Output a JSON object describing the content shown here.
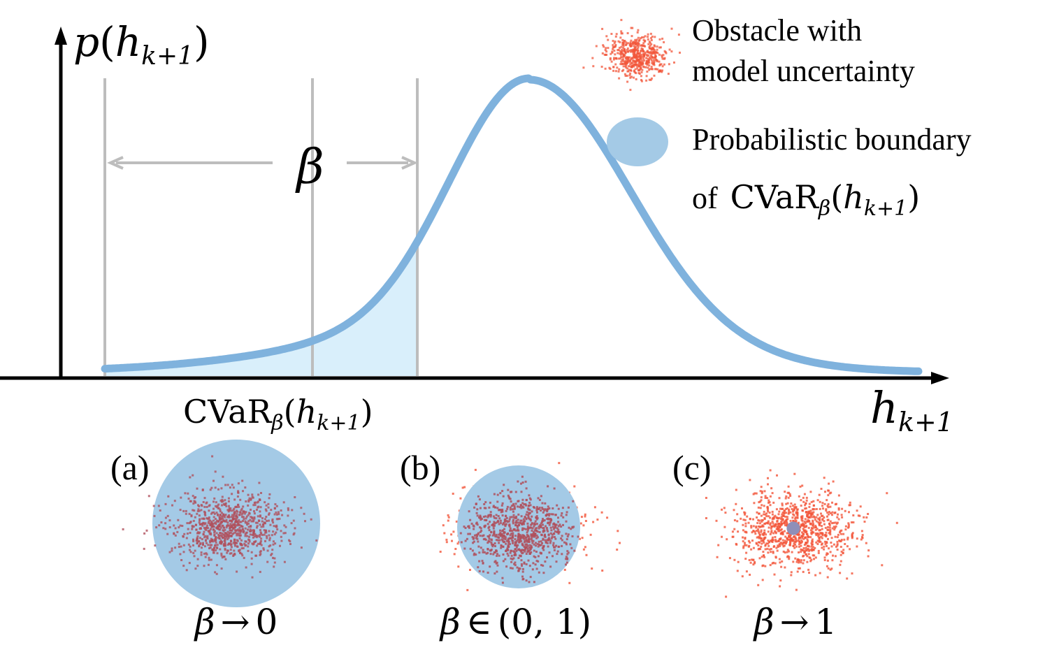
{
  "axes": {
    "y_label_main": "p",
    "y_label_var": "h",
    "y_label_sub": "k+1",
    "x_label_var": "h",
    "x_label_sub": "k+1"
  },
  "beta_symbol": "β",
  "cvar_label": {
    "text": "CVaR",
    "sub": "β",
    "var": "h",
    "var_sub": "k+1"
  },
  "legend": {
    "obstacle_line1": "Obstacle with",
    "obstacle_line2": "model uncertainty",
    "boundary_line1": "Probabilistic boundary",
    "boundary_line2_prefix": "of",
    "boundary_cvar": "CVaR",
    "boundary_sub": "β",
    "boundary_var": "h",
    "boundary_var_sub": "k+1"
  },
  "panels": [
    {
      "tag": "(a)",
      "caption_beta": "β",
      "caption_op": "→",
      "caption_value": "0",
      "boundary_scale": 1.0
    },
    {
      "tag": "(b)",
      "caption_beta": "β",
      "caption_op": "∈",
      "caption_value": "(0, 1)",
      "boundary_scale": 0.6
    },
    {
      "tag": "(c)",
      "caption_beta": "β",
      "caption_op": "→",
      "caption_value": "1",
      "boundary_scale": 0.08
    }
  ],
  "colors": {
    "curve": "#7fb2dd",
    "tail_fill": "#d9effb",
    "boundary": "#a4cae6",
    "obstacle": "#f2553a",
    "guide": "#bdbdbd",
    "axis": "#000000"
  }
}
